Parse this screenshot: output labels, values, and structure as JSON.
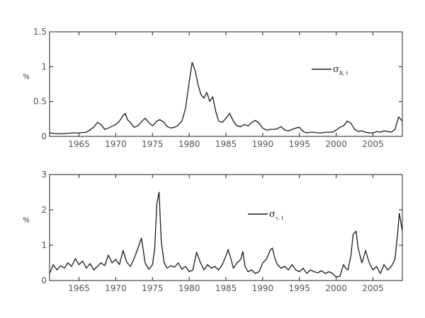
{
  "chart_data": [
    {
      "type": "line",
      "ylabel": "%",
      "xlim": [
        1961,
        2009
      ],
      "ylim": [
        0,
        1.5
      ],
      "x_ticks": [
        1965,
        1970,
        1975,
        1980,
        1985,
        1990,
        1995,
        2000,
        2005
      ],
      "y_ticks": [
        0,
        0.5,
        1,
        1.5
      ],
      "y_tick_labels": [
        "0",
        "0.5",
        "1",
        "1.5"
      ],
      "grid": false,
      "legend_position": "right",
      "series": [
        {
          "name": "σR,t",
          "legend_symbol": "σ",
          "legend_subscript": "R, t",
          "color": "#1a1a1a",
          "x": [
            1961,
            1962,
            1963,
            1964,
            1965,
            1966,
            1967,
            1967.5,
            1968,
            1968.5,
            1969,
            1970,
            1970.5,
            1971,
            1971.3,
            1971.6,
            1972,
            1972.5,
            1973,
            1973.6,
            1974,
            1974.5,
            1975,
            1975.6,
            1976,
            1976.6,
            1977,
            1977.5,
            1978,
            1978.5,
            1979,
            1979.5,
            1980,
            1980.4,
            1980.8,
            1981.2,
            1981.6,
            1982,
            1982.4,
            1982.8,
            1983.2,
            1983.6,
            1984,
            1984.5,
            1985,
            1985.5,
            1986,
            1986.5,
            1987,
            1987.5,
            1988,
            1988.5,
            1989,
            1989.5,
            1990,
            1990.5,
            1991,
            1991.5,
            1992,
            1992.5,
            1993,
            1993.5,
            1994,
            1994.5,
            1995,
            1995.5,
            1996,
            1996.5,
            1997,
            1997.5,
            1998,
            1998.5,
            1999,
            1999.5,
            2000,
            2000.5,
            2001,
            2001.5,
            2002,
            2002.5,
            2003,
            2003.5,
            2004,
            2004.5,
            2005,
            2005.5,
            2006,
            2006.5,
            2007,
            2007.5,
            2008,
            2008.5,
            2009
          ],
          "values": [
            0.05,
            0.04,
            0.04,
            0.05,
            0.05,
            0.06,
            0.13,
            0.2,
            0.17,
            0.1,
            0.12,
            0.17,
            0.22,
            0.3,
            0.33,
            0.24,
            0.2,
            0.13,
            0.15,
            0.22,
            0.26,
            0.2,
            0.15,
            0.22,
            0.24,
            0.2,
            0.14,
            0.12,
            0.13,
            0.16,
            0.22,
            0.4,
            0.78,
            1.06,
            0.95,
            0.74,
            0.6,
            0.55,
            0.63,
            0.5,
            0.57,
            0.36,
            0.22,
            0.2,
            0.26,
            0.33,
            0.22,
            0.15,
            0.14,
            0.17,
            0.15,
            0.2,
            0.23,
            0.19,
            0.12,
            0.09,
            0.1,
            0.1,
            0.11,
            0.14,
            0.09,
            0.08,
            0.1,
            0.12,
            0.13,
            0.07,
            0.05,
            0.06,
            0.06,
            0.05,
            0.05,
            0.06,
            0.06,
            0.06,
            0.09,
            0.13,
            0.15,
            0.22,
            0.19,
            0.1,
            0.07,
            0.08,
            0.06,
            0.05,
            0.05,
            0.07,
            0.06,
            0.08,
            0.07,
            0.06,
            0.1,
            0.28,
            0.22
          ]
        }
      ]
    },
    {
      "type": "line",
      "ylabel": "%",
      "xlim": [
        1961,
        2009
      ],
      "ylim": [
        0,
        3
      ],
      "x_ticks": [
        1965,
        1970,
        1975,
        1980,
        1985,
        1990,
        1995,
        2000,
        2005
      ],
      "y_ticks": [
        0,
        1,
        2,
        3
      ],
      "y_tick_labels": [
        "0",
        "1",
        "2",
        "3"
      ],
      "grid": false,
      "legend_position": "right",
      "series": [
        {
          "name": "στ,t",
          "legend_symbol": "σ",
          "legend_subscript": "τ, t",
          "color": "#1a1a1a",
          "x": [
            1961,
            1961.5,
            1962,
            1962.5,
            1963,
            1963.5,
            1964,
            1964.5,
            1965,
            1965.5,
            1966,
            1966.5,
            1967,
            1967.5,
            1968,
            1968.5,
            1969,
            1969.5,
            1970,
            1970.5,
            1971,
            1971.5,
            1972,
            1972.5,
            1973,
            1973.5,
            1974,
            1974.5,
            1975,
            1975.3,
            1975.6,
            1975.9,
            1976.2,
            1976.6,
            1977,
            1977.5,
            1978,
            1978.5,
            1979,
            1979.5,
            1980,
            1980.5,
            1981,
            1981.5,
            1982,
            1982.5,
            1983,
            1983.5,
            1984,
            1984.5,
            1985,
            1985.3,
            1985.7,
            1986,
            1986.5,
            1987,
            1987.3,
            1987.6,
            1988,
            1988.5,
            1989,
            1989.5,
            1990,
            1990.5,
            1991,
            1991.3,
            1991.7,
            1992,
            1992.5,
            1993,
            1993.5,
            1994,
            1994.5,
            1995,
            1995.5,
            1996,
            1996.5,
            1997,
            1997.5,
            1998,
            1998.5,
            1999,
            1999.5,
            2000,
            2000.5,
            2001,
            2001.3,
            2001.6,
            2002,
            2002.3,
            2002.7,
            2003,
            2003.5,
            2004,
            2004.5,
            2005,
            2005.5,
            2006,
            2006.5,
            2007,
            2007.5,
            2008,
            2008.3,
            2008.6,
            2009
          ],
          "values": [
            0.2,
            0.45,
            0.3,
            0.42,
            0.35,
            0.5,
            0.4,
            0.62,
            0.45,
            0.55,
            0.35,
            0.48,
            0.3,
            0.4,
            0.5,
            0.42,
            0.72,
            0.5,
            0.6,
            0.45,
            0.85,
            0.52,
            0.4,
            0.62,
            0.9,
            1.2,
            0.5,
            0.32,
            0.45,
            0.9,
            2.2,
            2.5,
            1.1,
            0.5,
            0.35,
            0.42,
            0.38,
            0.5,
            0.32,
            0.4,
            0.25,
            0.3,
            0.8,
            0.52,
            0.3,
            0.45,
            0.35,
            0.4,
            0.3,
            0.45,
            0.7,
            0.88,
            0.6,
            0.35,
            0.5,
            0.6,
            0.82,
            0.4,
            0.25,
            0.3,
            0.2,
            0.25,
            0.5,
            0.6,
            0.85,
            0.92,
            0.6,
            0.45,
            0.35,
            0.4,
            0.3,
            0.45,
            0.3,
            0.25,
            0.35,
            0.2,
            0.3,
            0.25,
            0.22,
            0.28,
            0.2,
            0.25,
            0.2,
            0.1,
            0.12,
            0.45,
            0.35,
            0.3,
            0.7,
            1.3,
            1.4,
            0.9,
            0.5,
            0.85,
            0.5,
            0.3,
            0.4,
            0.2,
            0.45,
            0.3,
            0.4,
            0.6,
            1.2,
            1.9,
            1.4
          ]
        }
      ]
    }
  ]
}
